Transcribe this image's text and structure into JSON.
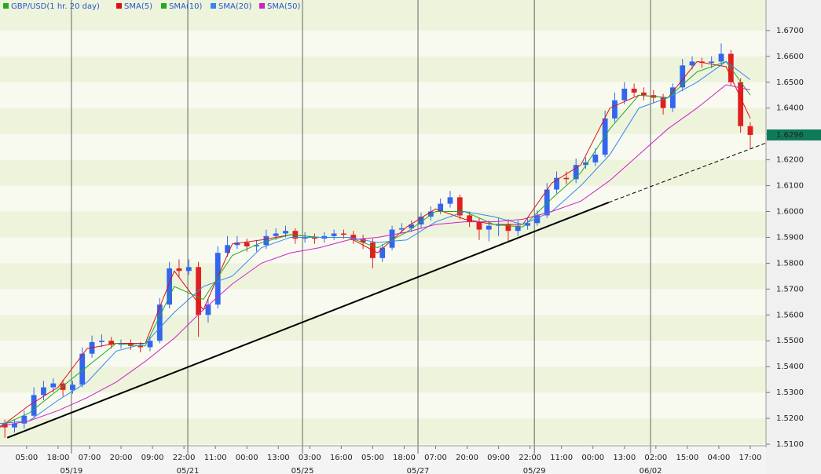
{
  "chart_data": {
    "type": "candlestick",
    "name": "GBP/USD(1 hr. 20 day)",
    "up_color": "#3366ee",
    "down_color": "#e02020",
    "x": [
      2,
      6,
      10,
      14,
      18,
      22,
      26,
      30,
      34,
      38,
      42,
      46,
      50,
      54,
      58,
      62,
      66,
      70,
      74,
      78,
      82,
      86,
      90,
      94,
      98,
      102,
      106,
      110,
      114,
      118,
      122,
      126,
      130,
      134,
      138,
      142,
      146,
      150,
      154,
      158,
      162,
      166,
      170,
      174,
      178,
      182,
      186,
      190,
      194,
      198,
      202,
      206,
      210,
      214,
      218,
      222,
      226,
      230,
      234,
      238,
      242,
      246,
      250,
      254,
      258,
      262,
      266,
      270,
      274,
      278,
      282,
      286,
      290,
      294,
      298,
      302,
      306,
      310
    ],
    "open": [
      1.518,
      1.5165,
      1.518,
      1.521,
      1.529,
      1.532,
      1.5335,
      1.531,
      1.533,
      1.545,
      1.5495,
      1.55,
      1.5485,
      1.549,
      1.548,
      1.5475,
      1.55,
      1.564,
      1.578,
      1.577,
      1.5785,
      1.56,
      1.564,
      1.584,
      1.587,
      1.588,
      1.5865,
      1.587,
      1.5905,
      1.5915,
      1.5925,
      1.5895,
      1.59,
      1.5895,
      1.5905,
      1.5915,
      1.591,
      1.5895,
      1.588,
      1.582,
      1.586,
      1.593,
      1.5935,
      1.595,
      1.598,
      1.6,
      1.603,
      1.6055,
      1.5985,
      1.596,
      1.593,
      1.5945,
      1.595,
      1.5925,
      1.5945,
      1.5955,
      1.5985,
      1.6085,
      1.613,
      1.6125,
      1.618,
      1.619,
      1.622,
      1.636,
      1.643,
      1.6475,
      1.646,
      1.645,
      1.644,
      1.64,
      1.648,
      1.6565,
      1.658,
      1.6575,
      1.658,
      1.661,
      1.65,
      1.633
    ],
    "high": [
      1.5195,
      1.5195,
      1.523,
      1.532,
      1.5345,
      1.5355,
      1.535,
      1.5345,
      1.5475,
      1.552,
      1.5525,
      1.5515,
      1.5505,
      1.5505,
      1.5495,
      1.5515,
      1.5665,
      1.5805,
      1.5815,
      1.5815,
      1.5805,
      1.5665,
      1.5865,
      1.5905,
      1.5905,
      1.5895,
      1.589,
      1.593,
      1.5935,
      1.5945,
      1.5935,
      1.592,
      1.5915,
      1.592,
      1.593,
      1.593,
      1.5925,
      1.591,
      1.5895,
      1.5875,
      1.5945,
      1.5955,
      1.5965,
      1.5995,
      1.602,
      1.605,
      1.608,
      1.6065,
      1.6,
      1.5975,
      1.5965,
      1.5975,
      1.597,
      1.5965,
      1.5975,
      1.6005,
      1.611,
      1.6155,
      1.6155,
      1.6205,
      1.621,
      1.6245,
      1.639,
      1.646,
      1.65,
      1.6495,
      1.648,
      1.647,
      1.6455,
      1.6495,
      1.659,
      1.66,
      1.6595,
      1.66,
      1.665,
      1.6625,
      1.6515,
      1.6345
    ],
    "low": [
      1.5125,
      1.5145,
      1.516,
      1.52,
      1.527,
      1.53,
      1.5285,
      1.5295,
      1.532,
      1.5435,
      1.5475,
      1.547,
      1.547,
      1.5465,
      1.5455,
      1.546,
      1.549,
      1.5625,
      1.5745,
      1.5755,
      1.5515,
      1.557,
      1.5625,
      1.5825,
      1.5855,
      1.5845,
      1.5845,
      1.5855,
      1.589,
      1.59,
      1.5875,
      1.588,
      1.5875,
      1.588,
      1.589,
      1.5895,
      1.5875,
      1.5855,
      1.578,
      1.5805,
      1.585,
      1.5915,
      1.592,
      1.5935,
      1.5965,
      1.599,
      1.6015,
      1.597,
      1.594,
      1.589,
      1.5885,
      1.5905,
      1.5885,
      1.5905,
      1.593,
      1.5945,
      1.5975,
      1.607,
      1.6105,
      1.611,
      1.6165,
      1.6175,
      1.621,
      1.6345,
      1.6415,
      1.6445,
      1.643,
      1.642,
      1.6375,
      1.6385,
      1.6465,
      1.655,
      1.6555,
      1.6555,
      1.6565,
      1.6485,
      1.6305,
      1.6245
    ],
    "close": [
      1.5165,
      1.518,
      1.521,
      1.529,
      1.532,
      1.5335,
      1.531,
      1.533,
      1.545,
      1.5495,
      1.55,
      1.5485,
      1.549,
      1.548,
      1.5475,
      1.55,
      1.564,
      1.578,
      1.577,
      1.5785,
      1.56,
      1.564,
      1.584,
      1.587,
      1.588,
      1.5865,
      1.587,
      1.5905,
      1.5915,
      1.5925,
      1.5895,
      1.59,
      1.5895,
      1.5905,
      1.5915,
      1.591,
      1.5895,
      1.588,
      1.582,
      1.586,
      1.593,
      1.5935,
      1.595,
      1.598,
      1.6,
      1.603,
      1.6055,
      1.5985,
      1.596,
      1.593,
      1.5945,
      1.595,
      1.5925,
      1.5945,
      1.5955,
      1.5985,
      1.6085,
      1.613,
      1.6125,
      1.618,
      1.619,
      1.622,
      1.636,
      1.643,
      1.6475,
      1.646,
      1.645,
      1.644,
      1.64,
      1.648,
      1.6565,
      1.658,
      1.6575,
      1.658,
      1.661,
      1.65,
      1.633,
      1.6296
    ],
    "last_price_label": "1.6296",
    "overlay_x": [
      0,
      12,
      24,
      36,
      48,
      60,
      72,
      84,
      96,
      108,
      120,
      132,
      144,
      156,
      168,
      180,
      192,
      204,
      216,
      228,
      240,
      252,
      264,
      276,
      288,
      300,
      310
    ],
    "overlays": [
      {
        "name": "SMA(5)",
        "color": "#dd1111",
        "values": [
          1.5165,
          1.525,
          1.532,
          1.547,
          1.549,
          1.549,
          1.577,
          1.562,
          1.5875,
          1.589,
          1.591,
          1.59,
          1.59,
          1.584,
          1.594,
          1.601,
          1.597,
          1.595,
          1.595,
          1.611,
          1.618,
          1.64,
          1.645,
          1.644,
          1.658,
          1.656,
          1.636
        ]
      },
      {
        "name": "SMA(10)",
        "color": "#22aa22",
        "values": [
          1.517,
          1.522,
          1.531,
          1.54,
          1.549,
          1.548,
          1.571,
          1.566,
          1.583,
          1.588,
          1.591,
          1.59,
          1.59,
          1.586,
          1.592,
          1.6,
          1.6,
          1.595,
          1.594,
          1.605,
          1.615,
          1.632,
          1.645,
          1.644,
          1.654,
          1.658,
          1.645
        ]
      },
      {
        "name": "SMA(20)",
        "color": "#3388ee",
        "values": [
          1.518,
          1.519,
          1.527,
          1.534,
          1.546,
          1.549,
          1.561,
          1.571,
          1.575,
          1.586,
          1.59,
          1.59,
          1.59,
          1.588,
          1.589,
          1.596,
          1.6,
          1.598,
          1.595,
          1.6,
          1.61,
          1.622,
          1.64,
          1.644,
          1.65,
          1.658,
          1.651
        ]
      },
      {
        "name": "SMA(50)",
        "color": "#cc22cc",
        "values": [
          1.517,
          1.519,
          1.523,
          1.528,
          1.534,
          1.542,
          1.551,
          1.562,
          1.572,
          1.58,
          1.584,
          1.586,
          1.589,
          1.59,
          1.592,
          1.595,
          1.596,
          1.596,
          1.597,
          1.6,
          1.604,
          1.612,
          1.622,
          1.632,
          1.64,
          1.649,
          1.647
        ]
      }
    ],
    "trendline": {
      "x": [
        3,
        251.5,
        316.5
      ],
      "values": [
        1.5125,
        1.6035,
        1.6265
      ],
      "color": "#000000"
    },
    "xlim": [
      0,
      316.5
    ],
    "ylim": [
      1.5094,
      1.6818
    ],
    "yticks": [
      {
        "value": 1.51,
        "label": "1.5100"
      },
      {
        "value": 1.52,
        "label": "1.5200"
      },
      {
        "value": 1.53,
        "label": "1.5300"
      },
      {
        "value": 1.54,
        "label": "1.5400"
      },
      {
        "value": 1.55,
        "label": "1.5500"
      },
      {
        "value": 1.56,
        "label": "1.5600"
      },
      {
        "value": 1.57,
        "label": "1.5700"
      },
      {
        "value": 1.58,
        "label": "1.5800"
      },
      {
        "value": 1.59,
        "label": "1.5900"
      },
      {
        "value": 1.6,
        "label": "1.6000"
      },
      {
        "value": 1.61,
        "label": "1.6100"
      },
      {
        "value": 1.62,
        "label": "1.6200"
      },
      {
        "value": 1.63,
        "label": "1.6300"
      },
      {
        "value": 1.64,
        "label": "1.6400"
      },
      {
        "value": 1.65,
        "label": "1.6500"
      },
      {
        "value": 1.66,
        "label": "1.6600"
      },
      {
        "value": 1.67,
        "label": "1.6700"
      }
    ],
    "xticks": [
      {
        "value": 11,
        "label": "05:00"
      },
      {
        "value": 24,
        "label": "18:00"
      },
      {
        "value": 37,
        "label": "07:00"
      },
      {
        "value": 50,
        "label": "20:00"
      },
      {
        "value": 63,
        "label": "09:00"
      },
      {
        "value": 76,
        "label": "22:00"
      },
      {
        "value": 89,
        "label": "11:00"
      },
      {
        "value": 102,
        "label": "00:00"
      },
      {
        "value": 115,
        "label": "13:00"
      },
      {
        "value": 128,
        "label": "03:00"
      },
      {
        "value": 141,
        "label": "16:00"
      },
      {
        "value": 154,
        "label": "05:00"
      },
      {
        "value": 167,
        "label": "18:00"
      },
      {
        "value": 180,
        "label": "07:00"
      },
      {
        "value": 193,
        "label": "20:00"
      },
      {
        "value": 206,
        "label": "09:00"
      },
      {
        "value": 219,
        "label": "22:00"
      },
      {
        "value": 232,
        "label": "11:00"
      },
      {
        "value": 245,
        "label": "00:00"
      },
      {
        "value": 258,
        "label": "13:00"
      },
      {
        "value": 271,
        "label": "02:00"
      },
      {
        "value": 284,
        "label": "15:00"
      },
      {
        "value": 297,
        "label": "04:00"
      },
      {
        "value": 310,
        "label": "17:00"
      }
    ],
    "date_markers": [
      {
        "value": 29.5,
        "label": "05/19"
      },
      {
        "value": 77.6,
        "label": "05/21"
      },
      {
        "value": 125,
        "label": "05/25"
      },
      {
        "value": 172.7,
        "label": "05/27"
      },
      {
        "value": 220.8,
        "label": "05/29"
      },
      {
        "value": 268.8,
        "label": "06/02"
      }
    ],
    "band_colors": [
      "#eef3dc",
      "#f8faf0"
    ]
  }
}
